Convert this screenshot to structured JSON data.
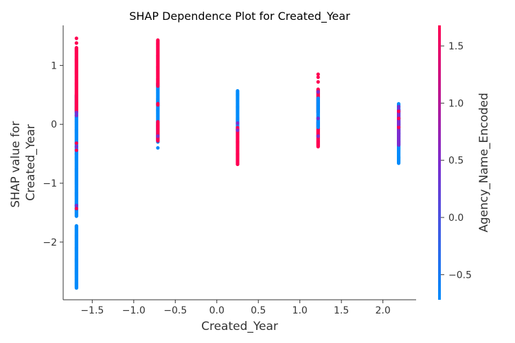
{
  "chart_data": {
    "type": "scatter",
    "title": "SHAP Dependence Plot for Created_Year",
    "xlabel": "Created_Year",
    "ylabel_lines": [
      "SHAP value for",
      "Created_Year"
    ],
    "xlim": [
      -1.85,
      2.4
    ],
    "ylim": [
      -2.98,
      1.68
    ],
    "xticks": [
      -1.5,
      -1.0,
      -0.5,
      0.0,
      0.5,
      1.0,
      1.5,
      2.0
    ],
    "xtick_labels": [
      "−1.5",
      "−1.0",
      "−0.5",
      "0.0",
      "0.5",
      "1.0",
      "1.5",
      "2.0"
    ],
    "yticks": [
      1,
      0,
      -1,
      -2
    ],
    "ytick_labels": [
      "1",
      "0",
      "−1",
      "−2"
    ],
    "grid": false,
    "color_feature": "Agency_Name_Encoded",
    "colorbar": {
      "label": "Agency_Name_Encoded",
      "range": [
        -0.72,
        1.68
      ],
      "ticks": [
        1.5,
        1.0,
        0.5,
        0.0,
        -0.5
      ],
      "tick_labels": [
        "1.5",
        "1.0",
        "0.5",
        "0.0",
        "−0.5"
      ],
      "low_color": "#008bfb",
      "high_color": "#ff0052"
    },
    "colors": {
      "low": "#008bfb",
      "mid": "#7c2ccf",
      "high": "#ff0052"
    },
    "clusters": [
      {
        "x": -1.69,
        "segments": [
          {
            "y_min": -2.78,
            "y_max": -1.72,
            "color": "low"
          },
          {
            "y_min": -1.56,
            "y_max": -0.5,
            "color": "low"
          },
          {
            "y_min": -0.5,
            "y_max": 0.05,
            "color": "low"
          },
          {
            "y_min": 0.05,
            "y_max": 0.5,
            "color": "low"
          },
          {
            "y_min": 0.22,
            "y_max": 1.3,
            "color": "high"
          }
        ],
        "points": [
          {
            "y": 1.46,
            "color": "high"
          },
          {
            "y": 1.38,
            "color": "high"
          },
          {
            "y": 0.2,
            "color": "mid"
          },
          {
            "y": 0.15,
            "color": "mid"
          },
          {
            "y": -0.32,
            "color": "high"
          },
          {
            "y": -0.38,
            "color": "mid"
          },
          {
            "y": -0.44,
            "color": "high"
          },
          {
            "y": -1.38,
            "color": "mid"
          },
          {
            "y": -1.43,
            "color": "high"
          }
        ]
      },
      {
        "x": -0.71,
        "segments": [
          {
            "y_min": -0.3,
            "y_max": 0.7,
            "color": "low"
          },
          {
            "y_min": -0.28,
            "y_max": 0.05,
            "color": "high"
          },
          {
            "y_min": 0.65,
            "y_max": 1.43,
            "color": "high"
          }
        ],
        "points": [
          {
            "y": -0.4,
            "color": "low"
          },
          {
            "y": 0.33,
            "color": "high"
          },
          {
            "y": 0.35,
            "color": "high"
          },
          {
            "y": -0.2,
            "color": "mid"
          }
        ]
      },
      {
        "x": 0.25,
        "segments": [
          {
            "y_min": -0.08,
            "y_max": 0.57,
            "color": "low"
          },
          {
            "y_min": -0.68,
            "y_max": -0.05,
            "color": "high"
          }
        ],
        "points": [
          {
            "y": 0.02,
            "color": "mid"
          },
          {
            "y": -0.1,
            "color": "mid"
          }
        ]
      },
      {
        "x": 1.22,
        "segments": [
          {
            "y_min": -0.38,
            "y_max": 0.05,
            "color": "high"
          },
          {
            "y_min": 0.2,
            "y_max": 0.6,
            "color": "high"
          },
          {
            "y_min": -0.05,
            "y_max": 0.45,
            "color": "low"
          }
        ],
        "points": [
          {
            "y": 0.85,
            "color": "high"
          },
          {
            "y": 0.8,
            "color": "high"
          },
          {
            "y": 0.72,
            "color": "high"
          },
          {
            "y": 0.55,
            "color": "mid"
          },
          {
            "y": 0.1,
            "color": "mid"
          },
          {
            "y": -0.2,
            "color": "mid"
          }
        ]
      },
      {
        "x": 2.19,
        "segments": [
          {
            "y_min": -0.66,
            "y_max": 0.35,
            "color": "low"
          },
          {
            "y_min": -0.35,
            "y_max": 0.25,
            "color": "mid"
          }
        ],
        "points": [
          {
            "y": 0.3,
            "color": "mid"
          },
          {
            "y": 0.22,
            "color": "high"
          },
          {
            "y": 0.1,
            "color": "high"
          },
          {
            "y": -0.05,
            "color": "high"
          },
          {
            "y": 0.0,
            "color": "mid"
          }
        ]
      }
    ]
  }
}
